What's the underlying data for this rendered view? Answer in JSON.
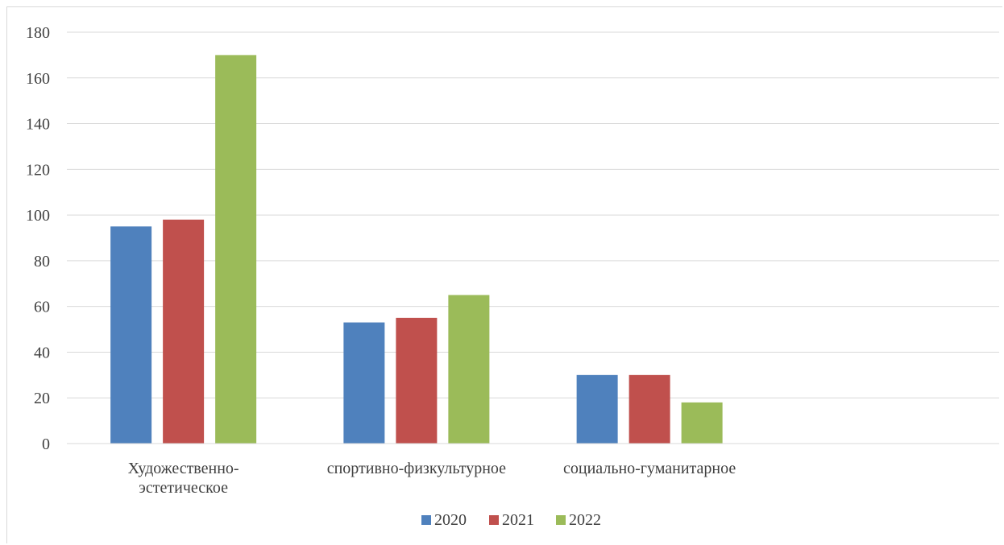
{
  "chart_data": {
    "type": "bar",
    "categories": [
      [
        "Художественно-",
        "эстетическое"
      ],
      [
        "спортивно-физкультурное"
      ],
      [
        "социально-гуманитарное"
      ],
      []
    ],
    "series": [
      {
        "name": "2020",
        "values": [
          95,
          53,
          30,
          null
        ],
        "color": "#4f81bd"
      },
      {
        "name": "2021",
        "values": [
          98,
          55,
          30,
          null
        ],
        "color": "#c0504d"
      },
      {
        "name": "2022",
        "values": [
          170,
          65,
          18,
          null
        ],
        "color": "#9bbb59"
      }
    ],
    "ylim": [
      0,
      180
    ],
    "yticks": [
      0,
      20,
      40,
      60,
      80,
      100,
      120,
      140,
      160,
      180
    ],
    "grid": true,
    "gridColor": "#d9d9d9",
    "legend_position": "bottom",
    "title": "",
    "xlabel": "",
    "ylabel": ""
  }
}
